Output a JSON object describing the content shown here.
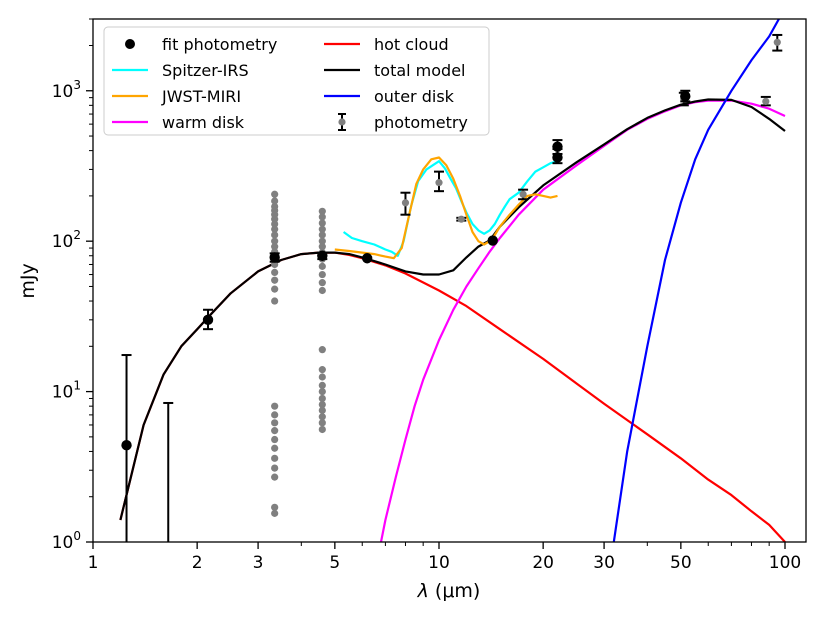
{
  "chart_data": {
    "type": "scatter",
    "title": "",
    "xlabel_symbol": "λ",
    "xlabel_unit": "(μm)",
    "ylabel": "mJy",
    "xscale": "log",
    "yscale": "log",
    "xlim": [
      1,
      115
    ],
    "ylim": [
      1,
      3000
    ],
    "x_ticks": [
      {
        "value": 1,
        "label": "1"
      },
      {
        "value": 2,
        "label": "2"
      },
      {
        "value": 3,
        "label": "3"
      },
      {
        "value": 5,
        "label": "5"
      },
      {
        "value": 10,
        "label": "10"
      },
      {
        "value": 20,
        "label": "20"
      },
      {
        "value": 30,
        "label": "30"
      },
      {
        "value": 50,
        "label": "50"
      },
      {
        "value": 100,
        "label": "100"
      }
    ],
    "y_ticks": [
      {
        "value": 1,
        "base": "10",
        "exp": "0"
      },
      {
        "value": 10,
        "base": "10",
        "exp": "1"
      },
      {
        "value": 100,
        "base": "10",
        "exp": "2"
      },
      {
        "value": 1000,
        "base": "10",
        "exp": "3"
      }
    ],
    "grid": false,
    "legend_placement": "top-left",
    "legend": [
      {
        "label": "fit photometry",
        "kind": "marker",
        "color": "#000000"
      },
      {
        "label": "Spitzer-IRS",
        "kind": "line",
        "color": "#00ffff"
      },
      {
        "label": "JWST-MIRI",
        "kind": "line",
        "color": "#ffa500"
      },
      {
        "label": "warm disk",
        "kind": "line",
        "color": "#ff00ff"
      },
      {
        "label": "hot cloud",
        "kind": "line",
        "color": "#ff0000"
      },
      {
        "label": "total model",
        "kind": "line",
        "color": "#000000"
      },
      {
        "label": "outer disk",
        "kind": "line",
        "color": "#0000ff"
      },
      {
        "label": "photometry",
        "kind": "errorbar",
        "color": "#808080"
      }
    ],
    "series": [
      {
        "name": "hot cloud",
        "kind": "line",
        "color": "#ff0000",
        "points": [
          [
            1.2,
            1.4
          ],
          [
            1.4,
            6
          ],
          [
            1.6,
            13
          ],
          [
            1.8,
            20
          ],
          [
            2,
            26
          ],
          [
            2.2,
            33
          ],
          [
            2.5,
            45
          ],
          [
            3,
            63
          ],
          [
            3.5,
            75
          ],
          [
            4,
            82
          ],
          [
            4.5,
            84
          ],
          [
            5,
            84
          ],
          [
            5.5,
            81
          ],
          [
            6,
            77
          ],
          [
            7,
            69
          ],
          [
            8,
            61
          ],
          [
            10,
            47
          ],
          [
            12,
            37
          ],
          [
            15,
            26
          ],
          [
            20,
            16.5
          ],
          [
            25,
            11.3
          ],
          [
            30,
            8.3
          ],
          [
            40,
            5.2
          ],
          [
            50,
            3.6
          ],
          [
            60,
            2.6
          ],
          [
            70,
            2.05
          ],
          [
            80,
            1.6
          ],
          [
            90,
            1.3
          ],
          [
            100,
            1.0
          ]
        ]
      },
      {
        "name": "warm disk",
        "kind": "line",
        "color": "#ff00ff",
        "points": [
          [
            6.8,
            1.0
          ],
          [
            7,
            1.4
          ],
          [
            7.5,
            2.7
          ],
          [
            8,
            4.8
          ],
          [
            8.5,
            8
          ],
          [
            9,
            12
          ],
          [
            10,
            22
          ],
          [
            11,
            35
          ],
          [
            12,
            50
          ],
          [
            13,
            66
          ],
          [
            14,
            85
          ],
          [
            15,
            105
          ],
          [
            17,
            150
          ],
          [
            20,
            220
          ],
          [
            25,
            320
          ],
          [
            30,
            430
          ],
          [
            35,
            550
          ],
          [
            40,
            650
          ],
          [
            45,
            730
          ],
          [
            50,
            800
          ],
          [
            55,
            840
          ],
          [
            60,
            860
          ],
          [
            70,
            860
          ],
          [
            80,
            820
          ],
          [
            90,
            760
          ],
          [
            100,
            680
          ]
        ]
      },
      {
        "name": "total model",
        "kind": "line",
        "color": "#000000",
        "points": [
          [
            1.2,
            1.4
          ],
          [
            1.4,
            6
          ],
          [
            1.6,
            13
          ],
          [
            1.8,
            20
          ],
          [
            2,
            26
          ],
          [
            2.2,
            33
          ],
          [
            2.5,
            45
          ],
          [
            3,
            63
          ],
          [
            3.5,
            75
          ],
          [
            4,
            82
          ],
          [
            4.5,
            84
          ],
          [
            5,
            84
          ],
          [
            5.5,
            82
          ],
          [
            6,
            78
          ],
          [
            7,
            70
          ],
          [
            8,
            63
          ],
          [
            9,
            60
          ],
          [
            10,
            60
          ],
          [
            11,
            64
          ],
          [
            12,
            78
          ],
          [
            13,
            92
          ],
          [
            14,
            101
          ],
          [
            15,
            125
          ],
          [
            17,
            168
          ],
          [
            20,
            235
          ],
          [
            25,
            335
          ],
          [
            30,
            440
          ],
          [
            35,
            555
          ],
          [
            40,
            660
          ],
          [
            45,
            740
          ],
          [
            50,
            808
          ],
          [
            55,
            848
          ],
          [
            60,
            875
          ],
          [
            70,
            870
          ],
          [
            80,
            780
          ],
          [
            90,
            650
          ],
          [
            100,
            540
          ]
        ]
      },
      {
        "name": "outer disk",
        "kind": "line",
        "color": "#0000ff",
        "points": [
          [
            32,
            1.0
          ],
          [
            35,
            4
          ],
          [
            40,
            20
          ],
          [
            45,
            75
          ],
          [
            50,
            180
          ],
          [
            55,
            350
          ],
          [
            60,
            550
          ],
          [
            70,
            1000
          ],
          [
            80,
            1600
          ],
          [
            90,
            2300
          ],
          [
            96,
            3000
          ]
        ]
      },
      {
        "name": "Spitzer-IRS",
        "kind": "line",
        "color": "#00ffff",
        "points": [
          [
            5.3,
            115
          ],
          [
            5.6,
            105
          ],
          [
            6,
            100
          ],
          [
            6.5,
            95
          ],
          [
            7,
            88
          ],
          [
            7.3,
            85
          ],
          [
            7.6,
            80
          ],
          [
            7.9,
            100
          ],
          [
            8.3,
            170
          ],
          [
            8.7,
            250
          ],
          [
            9.2,
            300
          ],
          [
            9.6,
            320
          ],
          [
            10,
            340
          ],
          [
            10.4,
            305
          ],
          [
            10.8,
            260
          ],
          [
            11.2,
            225
          ],
          [
            11.6,
            185
          ],
          [
            12,
            155
          ],
          [
            12.5,
            130
          ],
          [
            13,
            118
          ],
          [
            13.5,
            112
          ],
          [
            14,
            118
          ],
          [
            14.5,
            130
          ],
          [
            15,
            150
          ],
          [
            15.5,
            170
          ],
          [
            16,
            190
          ],
          [
            17,
            210
          ],
          [
            18,
            250
          ],
          [
            19,
            290
          ],
          [
            20,
            310
          ],
          [
            21,
            330
          ],
          [
            22,
            340
          ]
        ]
      },
      {
        "name": "JWST-MIRI",
        "kind": "line",
        "color": "#ffa500",
        "points": [
          [
            5,
            88
          ],
          [
            5.5,
            86
          ],
          [
            6,
            84
          ],
          [
            6.5,
            82
          ],
          [
            7,
            79
          ],
          [
            7.4,
            77
          ],
          [
            7.8,
            90
          ],
          [
            8.2,
            150
          ],
          [
            8.6,
            240
          ],
          [
            9,
            300
          ],
          [
            9.5,
            350
          ],
          [
            10,
            360
          ],
          [
            10.5,
            320
          ],
          [
            11,
            260
          ],
          [
            11.5,
            200
          ],
          [
            12,
            150
          ],
          [
            12.5,
            115
          ],
          [
            13,
            100
          ],
          [
            13.5,
            95
          ],
          [
            14,
            100
          ],
          [
            14.5,
            110
          ],
          [
            15,
            125
          ],
          [
            16,
            150
          ],
          [
            17,
            175
          ],
          [
            18,
            200
          ],
          [
            19,
            205
          ],
          [
            20,
            200
          ],
          [
            21,
            195
          ],
          [
            22,
            200
          ]
        ]
      },
      {
        "name": "photometry (grey points)",
        "kind": "points",
        "color": "#808080",
        "points": [
          [
            1.25,
            4.4
          ],
          [
            3.35,
            205
          ],
          [
            3.35,
            185
          ],
          [
            3.35,
            170
          ],
          [
            3.35,
            160
          ],
          [
            3.35,
            150
          ],
          [
            3.35,
            140
          ],
          [
            3.35,
            130
          ],
          [
            3.35,
            120
          ],
          [
            3.35,
            110
          ],
          [
            3.35,
            100
          ],
          [
            3.35,
            92
          ],
          [
            3.35,
            85
          ],
          [
            3.35,
            78
          ],
          [
            3.35,
            70
          ],
          [
            3.35,
            62
          ],
          [
            3.35,
            55
          ],
          [
            3.35,
            48
          ],
          [
            3.35,
            40
          ],
          [
            3.35,
            8
          ],
          [
            3.35,
            7
          ],
          [
            3.35,
            6.2
          ],
          [
            3.35,
            5.5
          ],
          [
            3.35,
            4.8
          ],
          [
            3.35,
            4.2
          ],
          [
            3.35,
            3.6
          ],
          [
            3.35,
            3.1
          ],
          [
            3.35,
            2.7
          ],
          [
            3.35,
            1.7
          ],
          [
            3.35,
            1.55
          ],
          [
            4.6,
            158
          ],
          [
            4.6,
            145
          ],
          [
            4.6,
            132
          ],
          [
            4.6,
            120
          ],
          [
            4.6,
            110
          ],
          [
            4.6,
            100
          ],
          [
            4.6,
            92
          ],
          [
            4.6,
            84
          ],
          [
            4.6,
            76
          ],
          [
            4.6,
            68
          ],
          [
            4.6,
            60
          ],
          [
            4.6,
            53
          ],
          [
            4.6,
            47
          ],
          [
            4.6,
            19
          ],
          [
            4.6,
            14
          ],
          [
            4.6,
            12.5
          ],
          [
            4.6,
            11
          ],
          [
            4.6,
            10
          ],
          [
            4.6,
            9
          ],
          [
            4.6,
            8.2
          ],
          [
            4.6,
            7.5
          ],
          [
            4.6,
            6.8
          ],
          [
            4.6,
            6.2
          ],
          [
            4.6,
            5.6
          ]
        ]
      },
      {
        "name": "photometry (error bars)",
        "kind": "errorbar",
        "color": "#808080",
        "points": [
          {
            "x": 1.25,
            "y": 4.4,
            "lo": 1.0,
            "hi": 17.5
          },
          {
            "x": 1.65,
            "y": 1.0,
            "lo": 1.0,
            "hi": 8.4
          },
          {
            "x": 8.0,
            "y": 180,
            "lo": 150,
            "hi": 210
          },
          {
            "x": 10,
            "y": 245,
            "lo": 215,
            "hi": 290
          },
          {
            "x": 11.6,
            "y": 140,
            "lo": 137,
            "hi": 143
          },
          {
            "x": 17.5,
            "y": 205,
            "lo": 190,
            "hi": 220
          },
          {
            "x": 22,
            "y": 370,
            "lo": 330,
            "hi": 410
          },
          {
            "x": 22,
            "y": 425,
            "lo": 380,
            "hi": 470
          },
          {
            "x": 51,
            "y": 880,
            "lo": 800,
            "hi": 970
          },
          {
            "x": 88,
            "y": 850,
            "lo": 800,
            "hi": 910
          },
          {
            "x": 95,
            "y": 2100,
            "lo": 1850,
            "hi": 2350
          }
        ]
      },
      {
        "name": "fit photometry",
        "kind": "markers",
        "color": "#000000",
        "points": [
          {
            "x": 1.25,
            "y": 4.4
          },
          {
            "x": 2.15,
            "y": 30,
            "lo": 26,
            "hi": 35
          },
          {
            "x": 3.35,
            "y": 78,
            "lo": 73,
            "hi": 83
          },
          {
            "x": 4.6,
            "y": 80,
            "lo": 76,
            "hi": 84
          },
          {
            "x": 6.2,
            "y": 77
          },
          {
            "x": 14.3,
            "y": 101
          },
          {
            "x": 22,
            "y": 360
          },
          {
            "x": 22,
            "y": 425
          },
          {
            "x": 51.5,
            "y": 920,
            "lo": 850,
            "hi": 1000
          }
        ]
      }
    ]
  }
}
